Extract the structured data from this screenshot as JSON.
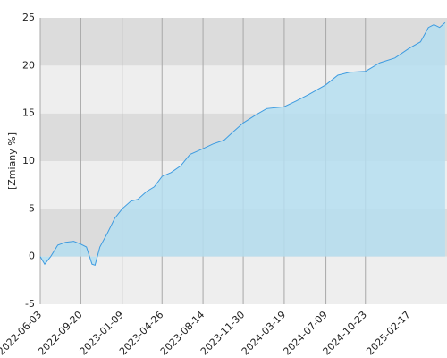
{
  "chart_data": {
    "type": "area",
    "y_label": "[Zmiany %]",
    "x": [
      "2022-06-03",
      "2022-06-15",
      "2022-07-01",
      "2022-07-20",
      "2022-08-10",
      "2022-09-01",
      "2022-09-20",
      "2022-10-05",
      "2022-10-20",
      "2022-10-28",
      "2022-11-10",
      "2022-12-01",
      "2022-12-20",
      "2023-01-09",
      "2023-02-01",
      "2023-02-20",
      "2023-03-15",
      "2023-04-05",
      "2023-04-26",
      "2023-05-20",
      "2023-06-15",
      "2023-07-10",
      "2023-08-14",
      "2023-09-10",
      "2023-10-10",
      "2023-11-01",
      "2023-11-30",
      "2024-01-01",
      "2024-02-01",
      "2024-03-19",
      "2024-04-20",
      "2024-05-25",
      "2024-07-09",
      "2024-08-10",
      "2024-09-10",
      "2024-10-23",
      "2024-12-01",
      "2025-01-10",
      "2025-02-17",
      "2025-03-20",
      "2025-04-10",
      "2025-04-25",
      "2025-05-10",
      "2025-05-25"
    ],
    "values": [
      0,
      -0.8,
      0,
      1.2,
      1.5,
      1.6,
      1.3,
      1.0,
      -0.8,
      -0.9,
      1.0,
      2.5,
      4.0,
      5.0,
      5.8,
      6.0,
      6.8,
      7.3,
      8.4,
      8.8,
      9.5,
      10.7,
      11.3,
      11.8,
      12.2,
      13.0,
      14.0,
      14.8,
      15.5,
      15.7,
      16.3,
      17.0,
      18.0,
      19.0,
      19.3,
      19.4,
      20.3,
      20.8,
      21.8,
      22.5,
      24.0,
      24.3,
      24.0,
      24.5
    ],
    "color": "#3d9be0",
    "fill_color": "#b5def0",
    "xlim": [
      "2022-06-03",
      "2025-05-30"
    ],
    "xticks": [
      "2022-06-03",
      "2022-09-20",
      "2023-01-09",
      "2023-04-26",
      "2023-08-14",
      "2023-11-30",
      "2024-03-19",
      "2024-07-09",
      "2024-10-23",
      "2025-02-17"
    ],
    "ylim": [
      -5,
      25
    ],
    "yticks": [
      -5,
      0,
      5,
      10,
      15,
      20,
      25
    ],
    "grid": true
  }
}
